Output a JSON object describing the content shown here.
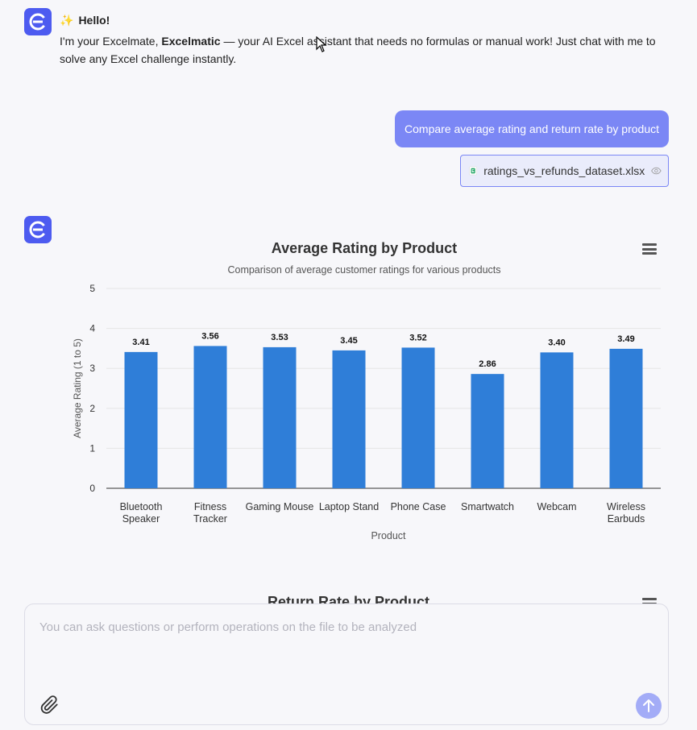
{
  "greeting": {
    "emoji": "✨",
    "title": "Hello!",
    "body_prefix": "I'm your Excelmate, ",
    "body_bold": "Excelmatic",
    "body_suffix": " — your AI Excel assistant that needs no formulas or manual work! Just chat with me to solve any Excel challenge instantly."
  },
  "user_message": {
    "text": "Compare average rating and return rate by product",
    "file_name": "ratings_vs_refunds_dataset.xlsx"
  },
  "chart_data": {
    "type": "bar",
    "title": "Average Rating by Product",
    "subtitle": "Comparison of average customer ratings for various products",
    "xlabel": "Product",
    "ylabel": "Average Rating (1 to 5)",
    "ylim": [
      0,
      5
    ],
    "yticks": [
      "0",
      "1",
      "2",
      "3",
      "4",
      "5"
    ],
    "categories": [
      "Bluetooth Speaker",
      "Fitness Tracker",
      "Gaming Mouse",
      "Laptop Stand",
      "Phone Case",
      "Smartwatch",
      "Webcam",
      "Wireless Earbuds"
    ],
    "values": [
      3.41,
      3.56,
      3.53,
      3.45,
      3.52,
      2.86,
      3.4,
      3.49
    ],
    "value_labels": [
      "3.41",
      "3.56",
      "3.53",
      "3.45",
      "3.52",
      "2.86",
      "3.40",
      "3.49"
    ],
    "bar_color": "#2f7ed8"
  },
  "next_chart": {
    "title": "Return Rate by Product"
  },
  "composer": {
    "placeholder": "You can ask questions or perform operations on the file to be analyzed"
  },
  "colors": {
    "accent": "#4d5bf0",
    "user_bubble": "#7b87f5",
    "send_button": "#a3acf7"
  }
}
